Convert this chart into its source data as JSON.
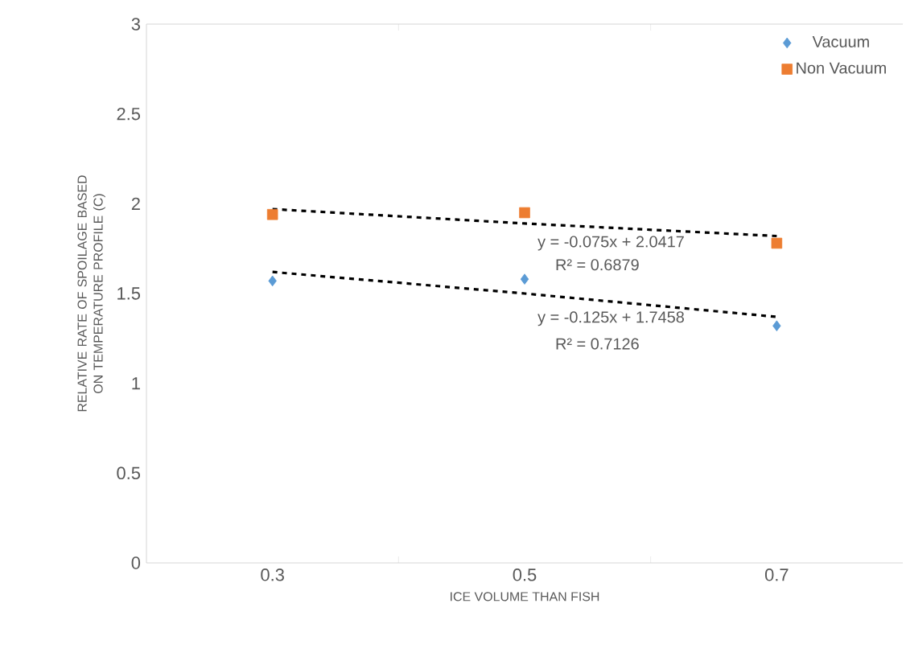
{
  "chart_data": {
    "type": "scatter",
    "xlabel": "ICE VOLUME THAN FISH",
    "ylabel": "RELATIVE RATE OF SPOILAGE BASED ON TEMPERATURE PROFILE (C)",
    "categories": [
      "0.3",
      "0.5",
      "0.7"
    ],
    "series": [
      {
        "name": "Vacuum",
        "color": "#5b9bd5",
        "marker": "diamond",
        "values": [
          1.57,
          1.58,
          1.32
        ]
      },
      {
        "name": "Non Vacuum",
        "color": "#ed7d31",
        "marker": "square",
        "values": [
          1.94,
          1.95,
          1.78
        ]
      },
      {
        "type": "line",
        "color": "#000000",
        "line_style": "dashed",
        "values": [
          1.97,
          1.89,
          1.82
        ]
      },
      {
        "type": "line",
        "color": "#000000",
        "line_style": "dashed",
        "values": [
          1.62,
          1.5,
          1.37
        ]
      }
    ],
    "annotations": [
      "y = -0.075x + 2.0417",
      "R² = 0.6879",
      "y = -0.125x + 1.7458",
      "R² = 0.7126"
    ],
    "ylim": [
      0,
      3
    ],
    "yticks": [
      0,
      0.5,
      1,
      1.5,
      2,
      2.5,
      3
    ],
    "grid": false,
    "legend": "top right"
  }
}
